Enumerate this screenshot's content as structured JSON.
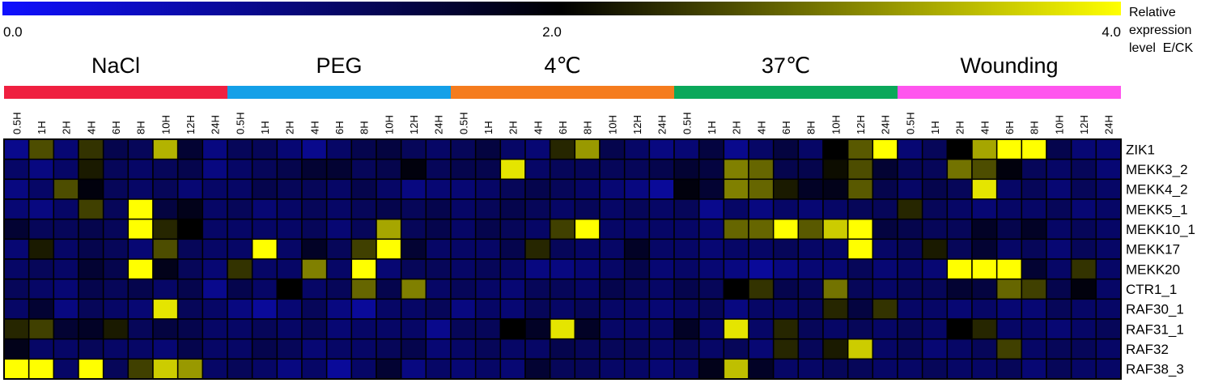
{
  "chart_data": {
    "type": "heatmap",
    "colorbar": {
      "min": 0.0,
      "mid": 2.0,
      "max": 4.0,
      "tick_labels": [
        "0.0",
        "2.0",
        "4.0"
      ],
      "label_lines": [
        "Relative",
        "expression",
        "level  E/CK"
      ],
      "colors": {
        "low": "#1010ff",
        "mid": "#000000",
        "high": "#ffff00"
      }
    },
    "groups": [
      {
        "name": "NaCl",
        "color": "#ef2040"
      },
      {
        "name": "PEG",
        "color": "#14a0e8"
      },
      {
        "name": "4℃",
        "color": "#f57c1e"
      },
      {
        "name": "37℃",
        "color": "#0aa85a"
      },
      {
        "name": "Wounding",
        "color": "#ff55ee"
      }
    ],
    "time_points": [
      "0.5H",
      "1H",
      "2H",
      "4H",
      "6H",
      "8H",
      "10H",
      "12H",
      "24H"
    ],
    "genes": [
      "ZIK1",
      "MEKK3_2",
      "MEKK4_2",
      "MEKK5_1",
      "MEKK10_1",
      "MEKK17",
      "MEKK20",
      "CTR1_1",
      "RAF30_1",
      "RAF31_1",
      "RAF32",
      "RAF38_3"
    ],
    "values": [
      [
        0.9,
        2.6,
        1.1,
        2.4,
        1.4,
        1.3,
        3.4,
        1.6,
        1.0,
        1.3,
        1.3,
        1.1,
        0.9,
        1.2,
        1.4,
        1.5,
        1.3,
        1.2,
        1.3,
        1.5,
        1.2,
        1.1,
        2.3,
        3.2,
        1.4,
        1.2,
        1.0,
        1.1,
        1.5,
        0.9,
        1.2,
        1.5,
        1.2,
        2.0,
        2.7,
        4.0,
        1.1,
        1.3,
        2.0,
        3.3,
        4.0,
        4.0,
        1.4,
        1.1,
        1.1
      ],
      [
        1.2,
        1.0,
        1.2,
        2.2,
        1.3,
        1.2,
        1.3,
        1.4,
        1.0,
        1.2,
        1.3,
        1.4,
        1.6,
        1.6,
        1.3,
        1.4,
        1.9,
        1.3,
        1.4,
        1.4,
        3.8,
        1.2,
        1.3,
        1.3,
        1.3,
        1.3,
        1.4,
        1.6,
        1.5,
        3.0,
        2.8,
        1.4,
        1.4,
        2.1,
        2.6,
        1.6,
        1.3,
        1.3,
        2.9,
        2.6,
        1.9,
        1.3,
        1.2,
        1.3,
        1.1
      ],
      [
        1.0,
        1.2,
        2.6,
        1.9,
        1.3,
        1.2,
        1.3,
        1.1,
        1.2,
        1.2,
        1.4,
        1.3,
        1.3,
        1.2,
        1.4,
        1.2,
        1.0,
        1.1,
        1.1,
        1.2,
        1.3,
        1.4,
        1.3,
        1.2,
        1.1,
        1.0,
        0.8,
        1.9,
        1.6,
        3.0,
        2.8,
        2.2,
        1.7,
        1.8,
        2.7,
        1.4,
        1.2,
        1.4,
        1.3,
        3.8,
        1.2,
        1.3,
        1.1,
        1.3,
        1.2
      ],
      [
        1.1,
        1.0,
        1.2,
        2.5,
        1.3,
        4.0,
        1.5,
        1.8,
        1.2,
        1.3,
        1.1,
        1.2,
        1.3,
        1.2,
        1.3,
        1.4,
        1.3,
        1.4,
        1.2,
        1.3,
        1.4,
        1.3,
        1.2,
        1.3,
        1.2,
        1.3,
        1.2,
        1.3,
        0.9,
        1.2,
        1.0,
        1.2,
        1.1,
        1.2,
        1.3,
        1.3,
        2.3,
        1.3,
        1.2,
        1.1,
        1.2,
        1.2,
        1.3,
        1.1,
        1.2
      ],
      [
        1.6,
        1.3,
        1.3,
        1.4,
        1.3,
        4.0,
        2.3,
        2.0,
        1.2,
        1.2,
        1.2,
        1.2,
        1.3,
        1.1,
        1.3,
        3.3,
        1.3,
        1.4,
        1.2,
        1.4,
        1.3,
        1.2,
        2.5,
        4.0,
        1.2,
        1.2,
        1.2,
        1.2,
        1.1,
        2.8,
        2.8,
        4.0,
        2.7,
        3.6,
        4.0,
        1.5,
        1.4,
        1.3,
        1.3,
        1.7,
        1.4,
        1.7,
        1.2,
        1.3,
        1.2
      ],
      [
        1.1,
        2.2,
        1.2,
        1.4,
        1.3,
        1.1,
        2.6,
        1.3,
        1.2,
        1.2,
        4.0,
        1.2,
        1.7,
        1.3,
        2.5,
        4.0,
        1.6,
        1.2,
        1.2,
        1.2,
        1.4,
        2.3,
        1.3,
        1.2,
        1.2,
        1.7,
        1.2,
        1.2,
        1.1,
        1.2,
        1.2,
        1.3,
        1.2,
        1.2,
        4.0,
        1.2,
        1.3,
        2.2,
        1.3,
        1.6,
        1.2,
        1.3,
        1.1,
        1.3,
        1.2
      ],
      [
        1.2,
        1.3,
        1.2,
        1.6,
        1.4,
        4.0,
        1.8,
        1.3,
        1.1,
        2.4,
        1.2,
        1.2,
        3.0,
        1.2,
        4.0,
        1.1,
        1.3,
        1.3,
        1.2,
        1.3,
        1.2,
        1.0,
        1.0,
        1.1,
        1.2,
        1.4,
        1.1,
        1.2,
        1.1,
        1.0,
        0.8,
        1.0,
        1.1,
        1.1,
        1.3,
        1.1,
        1.2,
        1.1,
        4.0,
        4.0,
        4.0,
        1.6,
        1.2,
        2.4,
        1.2
      ],
      [
        1.3,
        1.2,
        1.1,
        1.4,
        1.3,
        1.4,
        1.2,
        1.4,
        0.9,
        1.4,
        1.2,
        2.0,
        1.2,
        1.3,
        2.8,
        1.4,
        3.0,
        1.2,
        1.3,
        1.2,
        1.1,
        1.3,
        1.3,
        1.2,
        1.4,
        1.3,
        1.2,
        1.4,
        1.3,
        2.0,
        2.4,
        1.4,
        1.3,
        2.9,
        1.3,
        1.2,
        1.3,
        1.3,
        1.6,
        1.5,
        2.8,
        2.5,
        1.4,
        1.9,
        1.2
      ],
      [
        1.2,
        1.6,
        1.0,
        1.3,
        1.2,
        1.1,
        3.8,
        1.3,
        1.2,
        1.0,
        0.8,
        1.1,
        1.3,
        1.0,
        0.8,
        1.2,
        1.2,
        1.3,
        1.0,
        1.2,
        1.1,
        1.3,
        1.2,
        1.3,
        1.2,
        1.2,
        1.1,
        1.2,
        1.3,
        1.0,
        1.2,
        1.2,
        1.3,
        2.3,
        1.5,
        2.4,
        1.2,
        1.2,
        1.1,
        1.2,
        1.1,
        1.1,
        1.3,
        1.2,
        1.2
      ],
      [
        2.3,
        2.5,
        1.6,
        1.7,
        2.2,
        1.3,
        1.5,
        1.4,
        1.2,
        1.2,
        1.3,
        1.2,
        1.3,
        1.1,
        1.2,
        1.2,
        1.2,
        0.9,
        1.3,
        1.3,
        2.0,
        1.7,
        3.8,
        1.7,
        1.2,
        1.2,
        1.2,
        1.7,
        1.2,
        3.8,
        1.2,
        2.3,
        1.3,
        1.2,
        1.3,
        1.2,
        1.3,
        1.2,
        2.0,
        2.3,
        1.2,
        1.2,
        1.1,
        1.2,
        1.3
      ],
      [
        1.8,
        1.2,
        1.2,
        1.3,
        1.2,
        1.2,
        1.1,
        1.4,
        1.2,
        1.2,
        1.4,
        1.3,
        1.1,
        1.2,
        1.2,
        1.3,
        1.4,
        1.1,
        1.2,
        1.3,
        1.2,
        1.2,
        1.4,
        1.3,
        1.3,
        1.3,
        1.2,
        1.3,
        1.2,
        1.3,
        1.1,
        2.3,
        1.3,
        2.2,
        3.6,
        1.2,
        1.3,
        1.1,
        1.2,
        1.3,
        2.5,
        1.2,
        1.3,
        1.3,
        1.2
      ],
      [
        4.0,
        4.0,
        1.2,
        4.0,
        1.3,
        2.5,
        3.6,
        3.2,
        1.2,
        1.3,
        1.2,
        1.0,
        1.2,
        0.8,
        1.2,
        1.6,
        1.0,
        1.2,
        1.1,
        1.2,
        1.1,
        1.6,
        1.3,
        1.3,
        1.2,
        1.2,
        1.1,
        1.2,
        1.8,
        3.5,
        1.7,
        1.2,
        1.2,
        1.3,
        1.3,
        1.2,
        1.2,
        1.3,
        1.2,
        1.2,
        1.3,
        1.1,
        1.3,
        1.2,
        1.2
      ]
    ]
  }
}
